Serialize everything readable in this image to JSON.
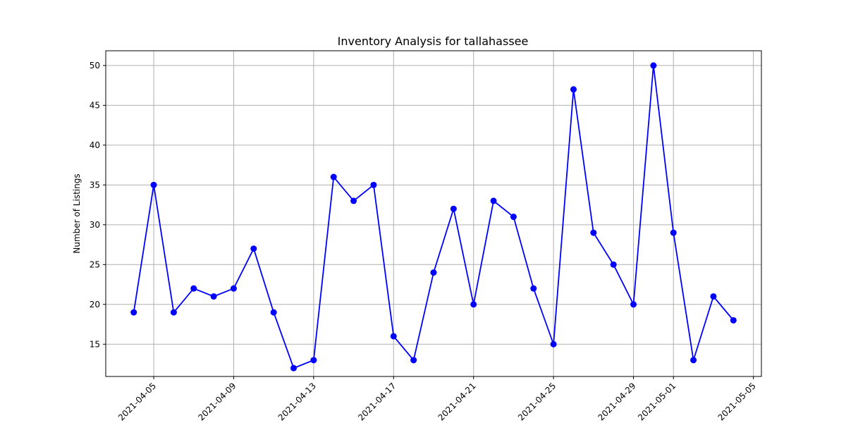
{
  "chart_data": {
    "type": "line",
    "title": "Inventory Analysis for tallahassee",
    "xlabel": "",
    "ylabel": "Number of Listings",
    "x": [
      "2021-04-04",
      "2021-04-05",
      "2021-04-06",
      "2021-04-07",
      "2021-04-08",
      "2021-04-09",
      "2021-04-10",
      "2021-04-11",
      "2021-04-12",
      "2021-04-13",
      "2021-04-14",
      "2021-04-15",
      "2021-04-16",
      "2021-04-17",
      "2021-04-18",
      "2021-04-19",
      "2021-04-20",
      "2021-04-21",
      "2021-04-22",
      "2021-04-23",
      "2021-04-24",
      "2021-04-25",
      "2021-04-26",
      "2021-04-27",
      "2021-04-28",
      "2021-04-29",
      "2021-04-30",
      "2021-05-01",
      "2021-05-02",
      "2021-05-03",
      "2021-05-04"
    ],
    "series": [
      {
        "values": [
          19,
          35,
          19,
          22,
          21,
          22,
          27,
          19,
          12,
          13,
          36,
          33,
          35,
          16,
          13,
          24,
          32,
          20,
          33,
          31,
          22,
          15,
          47,
          29,
          25,
          20,
          50,
          29,
          13,
          21,
          18
        ],
        "color": "#0000ff",
        "marker": "circle"
      }
    ],
    "xticks": [
      "2021-04-05",
      "2021-04-09",
      "2021-04-13",
      "2021-04-17",
      "2021-04-21",
      "2021-04-25",
      "2021-04-29",
      "2021-05-01",
      "2021-05-05"
    ],
    "yticks": [
      15,
      20,
      25,
      30,
      35,
      40,
      45,
      50
    ],
    "xlim": [
      "2021-04-03",
      "2021-05-05"
    ],
    "ylim": [
      10,
      52
    ],
    "grid": true,
    "legend": "none"
  }
}
